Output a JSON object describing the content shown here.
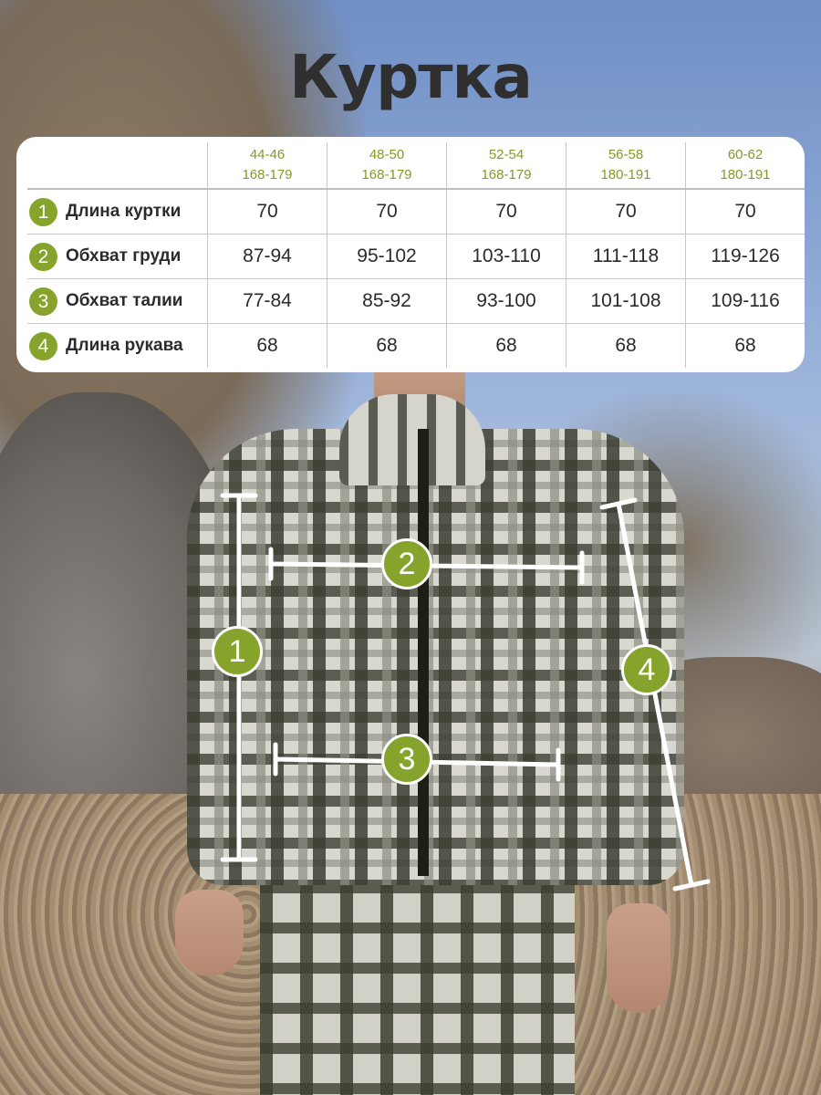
{
  "title": "Куртка",
  "table": {
    "sizes": [
      {
        "size": "44-46",
        "height": "168-179"
      },
      {
        "size": "48-50",
        "height": "168-179"
      },
      {
        "size": "52-54",
        "height": "168-179"
      },
      {
        "size": "56-58",
        "height": "180-191"
      },
      {
        "size": "60-62",
        "height": "180-191"
      }
    ],
    "rows": [
      {
        "num": "1",
        "label": "Длина куртки",
        "values": [
          "70",
          "70",
          "70",
          "70",
          "70"
        ]
      },
      {
        "num": "2",
        "label": "Обхват груди",
        "values": [
          "87-94",
          "95-102",
          "103-110",
          "111-118",
          "119-126"
        ]
      },
      {
        "num": "3",
        "label": "Обхват талии",
        "values": [
          "77-84",
          "85-92",
          "93-100",
          "101-108",
          "109-116"
        ]
      },
      {
        "num": "4",
        "label": "Длина рукава",
        "values": [
          "68",
          "68",
          "68",
          "68",
          "68"
        ]
      }
    ]
  },
  "measures": {
    "m1": "1",
    "m2": "2",
    "m3": "3",
    "m4": "4"
  },
  "colors": {
    "accent": "#86a42b",
    "text": "#2b2b2b",
    "title": "#2f2f2f"
  }
}
